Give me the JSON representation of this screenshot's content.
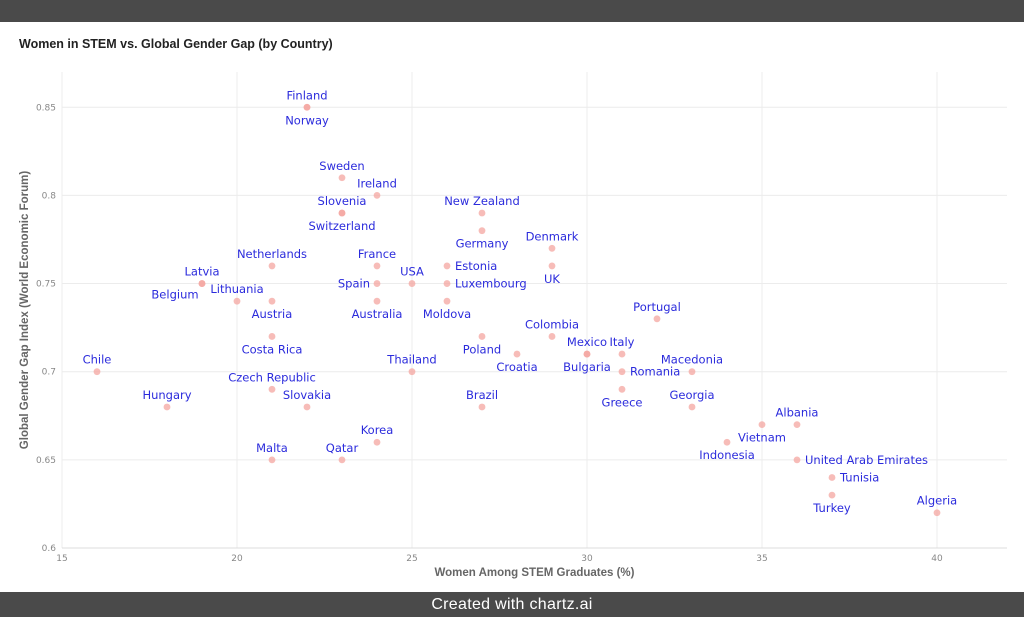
{
  "title": "Women in STEM vs. Global Gender Gap (by Country)",
  "footer": "Created with chartz.ai",
  "chart_data": {
    "type": "scatter",
    "title": "Women in STEM vs. Global Gender Gap (by Country)",
    "xlabel": "Women Among STEM Graduates (%)",
    "ylabel": "Global Gender Gap Index (World Economic Forum)",
    "xlim": [
      15,
      42
    ],
    "ylim": [
      0.6,
      0.87
    ],
    "xticks": [
      15,
      20,
      25,
      30,
      35,
      40
    ],
    "yticks": [
      0.6,
      0.65,
      0.7,
      0.75,
      0.8,
      0.85
    ],
    "grid": true,
    "legend": false,
    "marker_color": "#f4a6a0",
    "label_color": "#2b2bdc",
    "points": [
      {
        "country": "Finland",
        "x": 22,
        "y": 0.85,
        "pos": "above"
      },
      {
        "country": "Norway",
        "x": 22,
        "y": 0.85,
        "pos": "below"
      },
      {
        "country": "Sweden",
        "x": 23,
        "y": 0.81,
        "pos": "above"
      },
      {
        "country": "Ireland",
        "x": 24,
        "y": 0.8,
        "pos": "above"
      },
      {
        "country": "Slovenia",
        "x": 23,
        "y": 0.79,
        "pos": "above"
      },
      {
        "country": "Switzerland",
        "x": 23,
        "y": 0.79,
        "pos": "below"
      },
      {
        "country": "New Zealand",
        "x": 27,
        "y": 0.79,
        "pos": "above"
      },
      {
        "country": "Germany",
        "x": 27,
        "y": 0.78,
        "pos": "below"
      },
      {
        "country": "Denmark",
        "x": 29,
        "y": 0.77,
        "pos": "above"
      },
      {
        "country": "Netherlands",
        "x": 21,
        "y": 0.76,
        "pos": "above"
      },
      {
        "country": "France",
        "x": 24,
        "y": 0.76,
        "pos": "above"
      },
      {
        "country": "Estonia",
        "x": 26,
        "y": 0.76,
        "pos": "right"
      },
      {
        "country": "UK",
        "x": 29,
        "y": 0.76,
        "pos": "below"
      },
      {
        "country": "Latvia",
        "x": 19,
        "y": 0.75,
        "pos": "above"
      },
      {
        "country": "Belgium",
        "x": 19,
        "y": 0.75,
        "pos": "belowleft"
      },
      {
        "country": "Spain",
        "x": 24,
        "y": 0.75,
        "pos": "left"
      },
      {
        "country": "USA",
        "x": 25,
        "y": 0.75,
        "pos": "above"
      },
      {
        "country": "Luxembourg",
        "x": 26,
        "y": 0.75,
        "pos": "right"
      },
      {
        "country": "Lithuania",
        "x": 20,
        "y": 0.74,
        "pos": "above"
      },
      {
        "country": "Austria",
        "x": 21,
        "y": 0.74,
        "pos": "below"
      },
      {
        "country": "Australia",
        "x": 24,
        "y": 0.74,
        "pos": "below"
      },
      {
        "country": "Moldova",
        "x": 26,
        "y": 0.74,
        "pos": "below"
      },
      {
        "country": "Portugal",
        "x": 32,
        "y": 0.73,
        "pos": "above"
      },
      {
        "country": "Costa Rica",
        "x": 21,
        "y": 0.72,
        "pos": "below"
      },
      {
        "country": "Colombia",
        "x": 29,
        "y": 0.72,
        "pos": "above"
      },
      {
        "country": "Poland",
        "x": 27,
        "y": 0.72,
        "pos": "below"
      },
      {
        "country": "Croatia",
        "x": 28,
        "y": 0.71,
        "pos": "below"
      },
      {
        "country": "Mexico",
        "x": 30,
        "y": 0.71,
        "pos": "above"
      },
      {
        "country": "Bulgaria",
        "x": 30,
        "y": 0.71,
        "pos": "below"
      },
      {
        "country": "Italy",
        "x": 31,
        "y": 0.71,
        "pos": "above"
      },
      {
        "country": "Chile",
        "x": 16,
        "y": 0.7,
        "pos": "above"
      },
      {
        "country": "Thailand",
        "x": 25,
        "y": 0.7,
        "pos": "above"
      },
      {
        "country": "Romania",
        "x": 31,
        "y": 0.7,
        "pos": "right"
      },
      {
        "country": "Macedonia",
        "x": 33,
        "y": 0.7,
        "pos": "above"
      },
      {
        "country": "Czech Republic",
        "x": 21,
        "y": 0.69,
        "pos": "above"
      },
      {
        "country": "Greece",
        "x": 31,
        "y": 0.69,
        "pos": "below"
      },
      {
        "country": "Hungary",
        "x": 18,
        "y": 0.68,
        "pos": "above"
      },
      {
        "country": "Slovakia",
        "x": 22,
        "y": 0.68,
        "pos": "above"
      },
      {
        "country": "Brazil",
        "x": 27,
        "y": 0.68,
        "pos": "above"
      },
      {
        "country": "Georgia",
        "x": 33,
        "y": 0.68,
        "pos": "above"
      },
      {
        "country": "Albania",
        "x": 36,
        "y": 0.67,
        "pos": "above"
      },
      {
        "country": "Korea",
        "x": 24,
        "y": 0.66,
        "pos": "above"
      },
      {
        "country": "Vietnam",
        "x": 35,
        "y": 0.67,
        "pos": "below"
      },
      {
        "country": "Indonesia",
        "x": 34,
        "y": 0.66,
        "pos": "below"
      },
      {
        "country": "Malta",
        "x": 21,
        "y": 0.65,
        "pos": "above"
      },
      {
        "country": "Qatar",
        "x": 23,
        "y": 0.65,
        "pos": "above"
      },
      {
        "country": "United Arab Emirates",
        "x": 36,
        "y": 0.65,
        "pos": "right"
      },
      {
        "country": "Tunisia",
        "x": 37,
        "y": 0.64,
        "pos": "right"
      },
      {
        "country": "Turkey",
        "x": 37,
        "y": 0.63,
        "pos": "below"
      },
      {
        "country": "Algeria",
        "x": 40,
        "y": 0.62,
        "pos": "above"
      }
    ]
  }
}
